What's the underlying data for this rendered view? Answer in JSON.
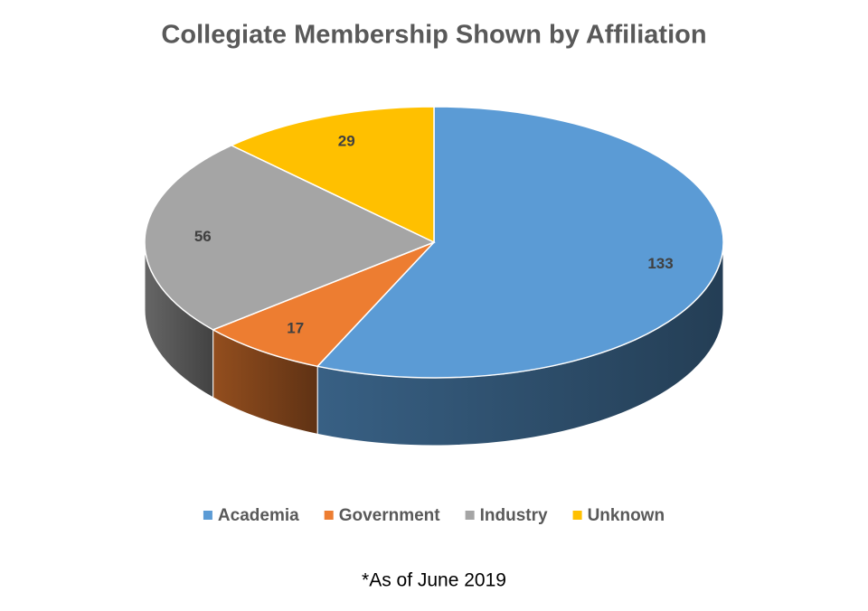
{
  "chart_data": {
    "type": "pie",
    "title": "Collegiate Membership Shown by Affiliation",
    "categories": [
      "Academia",
      "Government",
      "Industry",
      "Unknown"
    ],
    "values": [
      133,
      17,
      56,
      29
    ],
    "colors": [
      "#5b9bd5",
      "#ed7d31",
      "#a5a5a5",
      "#ffc000"
    ],
    "legend": "bottom",
    "note": "*As of June 2019"
  }
}
